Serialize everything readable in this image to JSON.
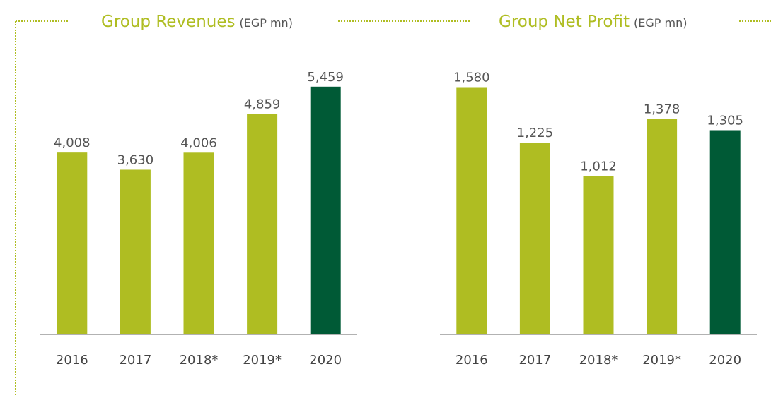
{
  "chart_data": [
    {
      "type": "bar",
      "title": "Group Revenues",
      "unit": "(EGP mn)",
      "categories": [
        "2016",
        "2017",
        "2018*",
        "2019*",
        "2020"
      ],
      "values": [
        4008,
        3630,
        4006,
        4859,
        5459
      ],
      "value_labels": [
        "4,008",
        "3,630",
        "4,006",
        "4,859",
        "5,459"
      ],
      "colors": [
        "#afbd22",
        "#afbd22",
        "#afbd22",
        "#afbd22",
        "#005a36"
      ],
      "ylim": [
        0,
        6000
      ]
    },
    {
      "type": "bar",
      "title": "Group Net Profit",
      "unit": "(EGP mn)",
      "categories": [
        "2016",
        "2017",
        "2018*",
        "2019*",
        "2020"
      ],
      "values": [
        1580,
        1225,
        1012,
        1378,
        1305
      ],
      "value_labels": [
        "1,580",
        "1,225",
        "1,012",
        "1,378",
        "1,305"
      ],
      "colors": [
        "#afbd22",
        "#afbd22",
        "#afbd22",
        "#afbd22",
        "#005a36"
      ],
      "ylim": [
        0,
        1740
      ]
    }
  ]
}
